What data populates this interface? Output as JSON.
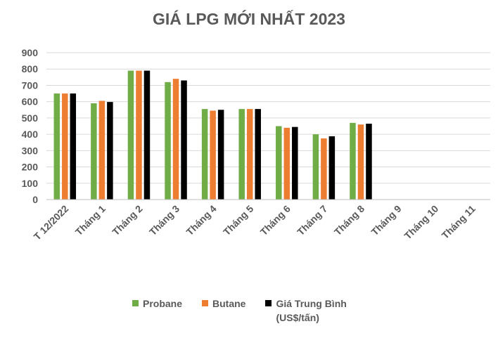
{
  "chart_data": {
    "type": "bar",
    "title": "GIÁ LPG MỚI NHẤT 2023",
    "categories": [
      "T 12/2022",
      "Tháng 1",
      "Tháng  2",
      "Tháng 3",
      "Tháng 4",
      "Tháng 5",
      "Tháng 6",
      "Tháng 7",
      "Tháng 8",
      "Tháng 9",
      "Tháng 10",
      "Tháng 11"
    ],
    "series": [
      {
        "name": "Probane",
        "color": "#70AD47",
        "values": [
          650,
          590,
          790,
          720,
          555,
          555,
          450,
          400,
          470,
          null,
          null,
          null
        ]
      },
      {
        "name": "Butane",
        "color": "#ED7D31",
        "values": [
          650,
          605,
          790,
          740,
          545,
          555,
          440,
          375,
          460,
          null,
          null,
          null
        ]
      },
      {
        "name": "Giá Trung Bình (US$/tấn)",
        "color": "#000000",
        "values": [
          650,
          598,
          790,
          730,
          550,
          555,
          445,
          388,
          465,
          null,
          null,
          null
        ]
      }
    ],
    "ylim": [
      0,
      900
    ],
    "yticks": [
      0,
      100,
      200,
      300,
      400,
      500,
      600,
      700,
      800,
      900
    ],
    "grid": true,
    "legend_position": "bottom"
  },
  "legend": {
    "probane": "Probane",
    "butane": "Butane",
    "average_line1": "Giá Trung Bình",
    "average_line2": "(US$/tấn)"
  }
}
